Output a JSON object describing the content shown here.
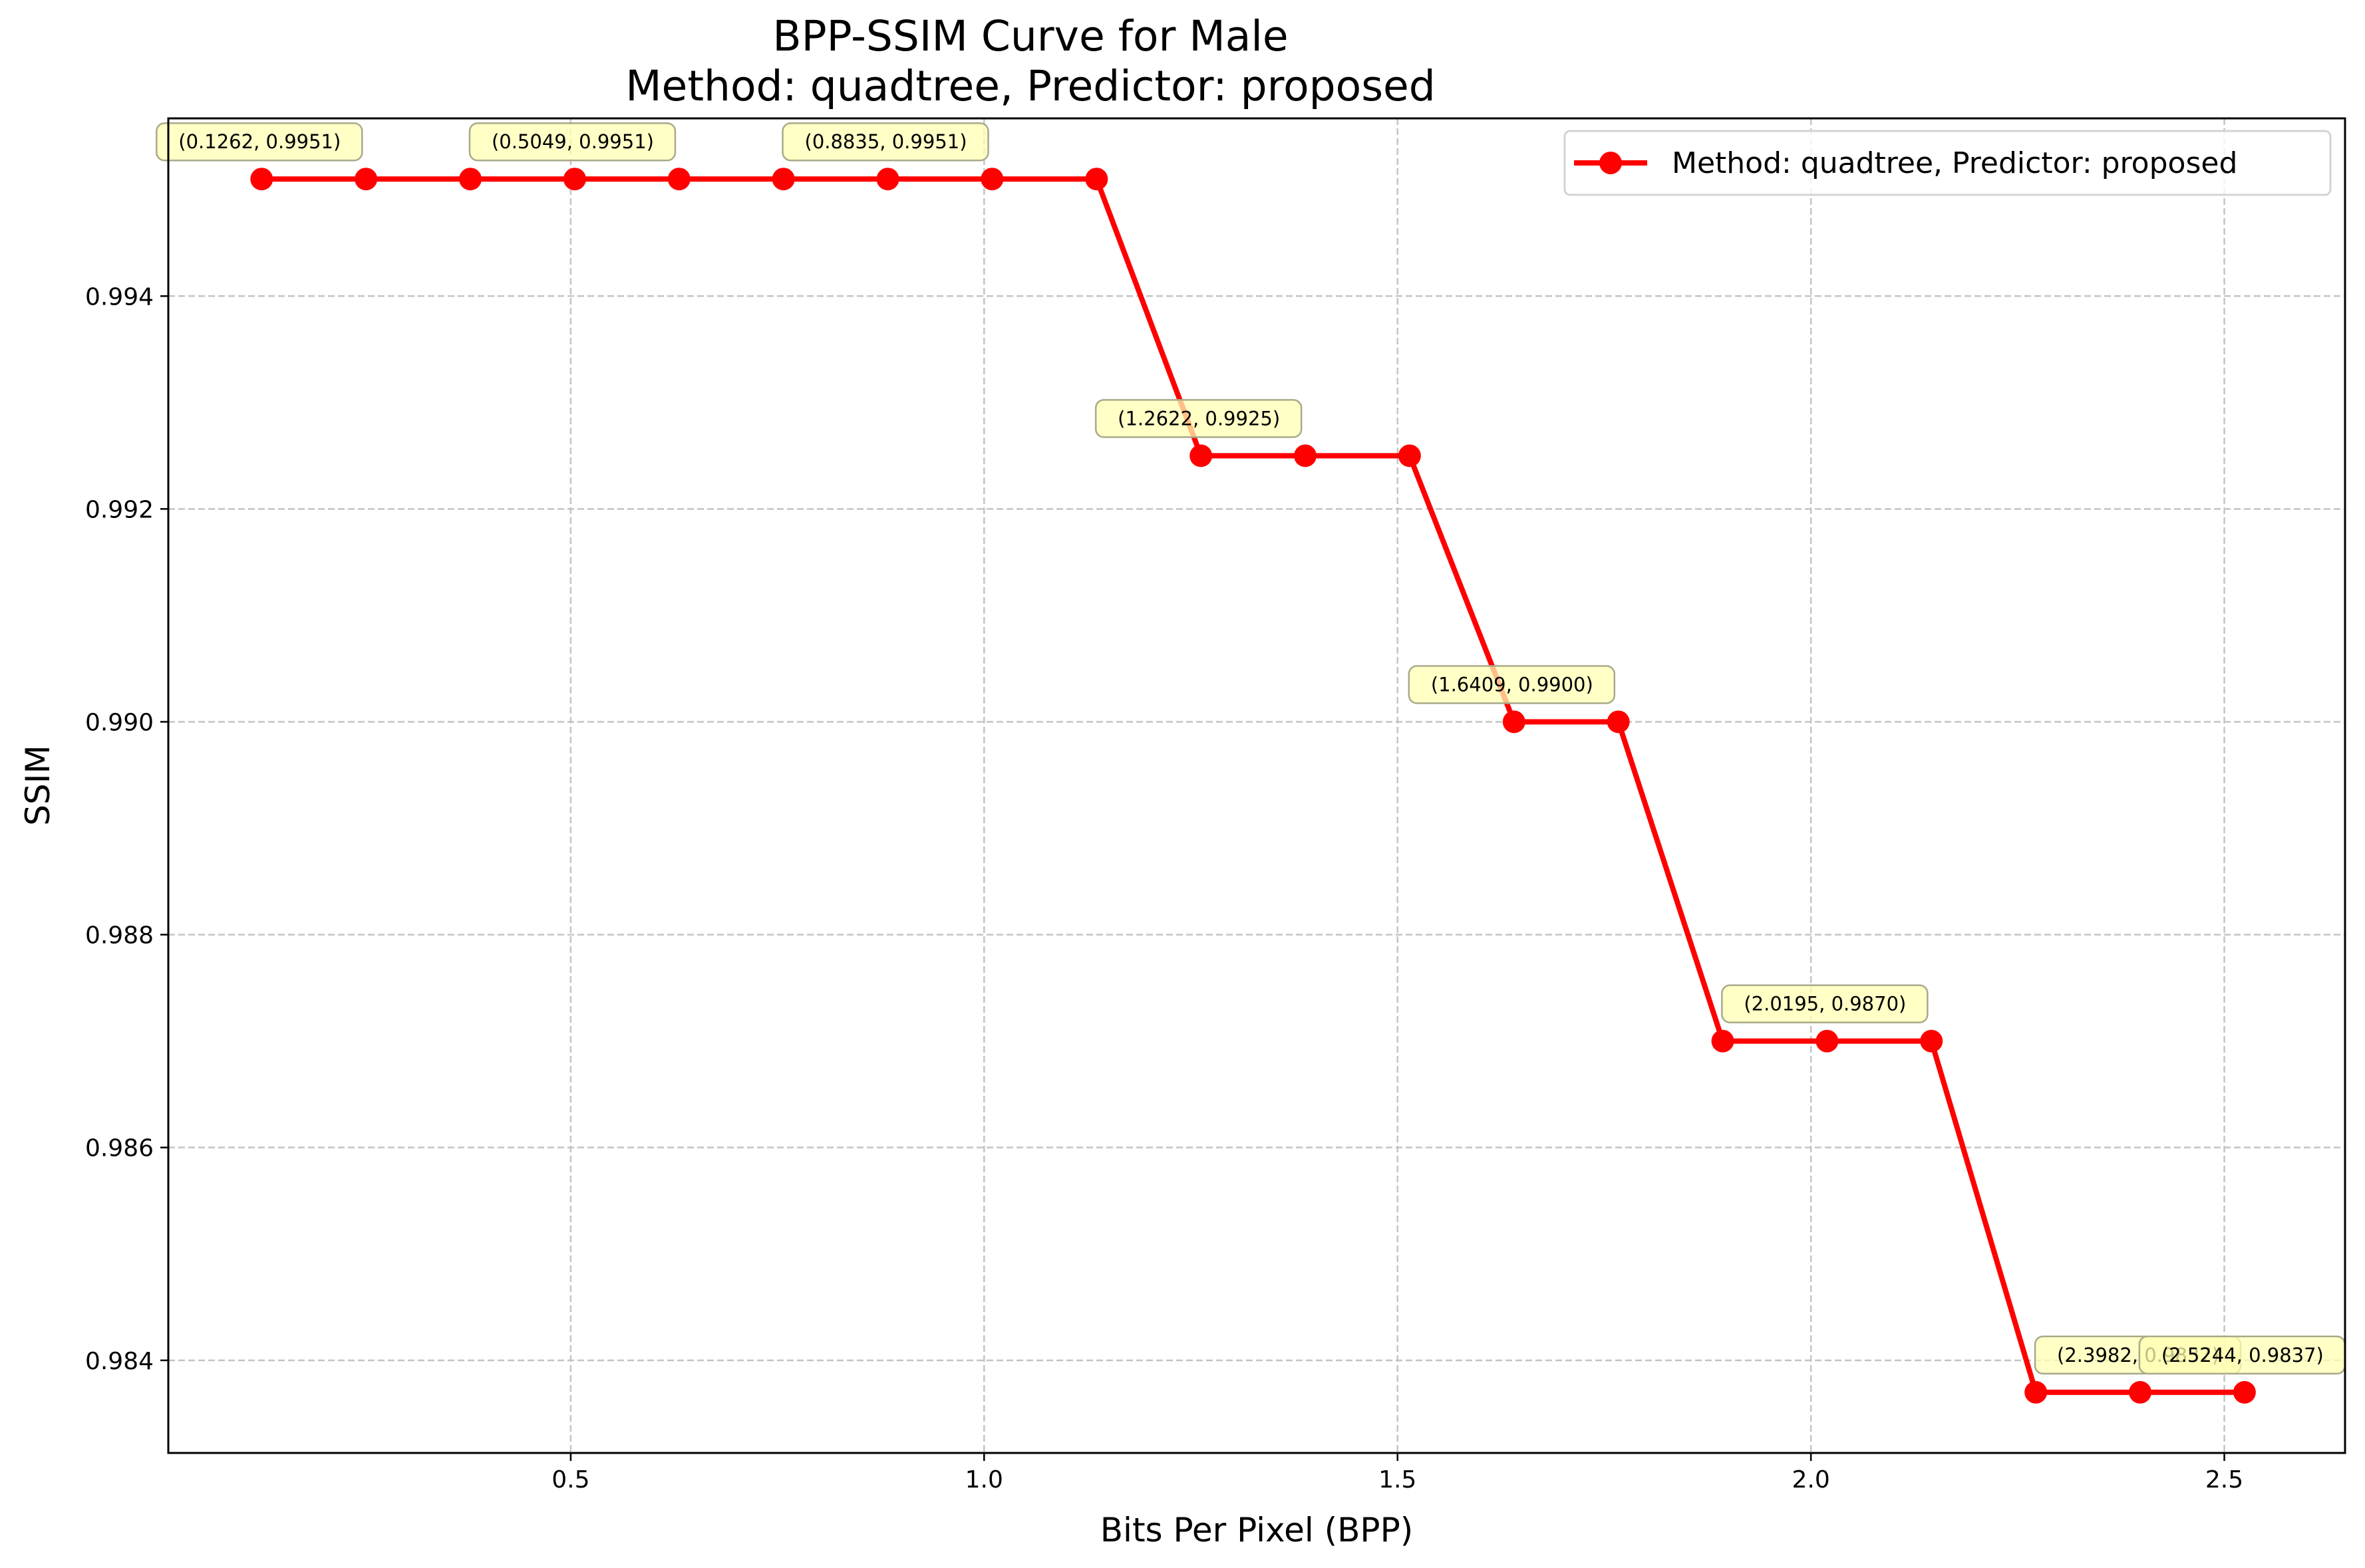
{
  "chart_data": {
    "type": "line",
    "title": [
      "BPP-SSIM Curve for Male",
      "Method: quadtree, Predictor: proposed"
    ],
    "xlabel": "Bits Per Pixel (BPP)",
    "ylabel": "SSIM",
    "xlim": [
      0.0133,
      2.646
    ],
    "ylim": [
      0.98313,
      0.99567
    ],
    "xticks": [
      0.5,
      1.0,
      1.5,
      2.0,
      2.5
    ],
    "xtick_labels": [
      "0.5",
      "1.0",
      "1.5",
      "2.0",
      "2.5"
    ],
    "yticks": [
      0.984,
      0.986,
      0.988,
      0.99,
      0.992,
      0.994
    ],
    "ytick_labels": [
      "0.984",
      "0.986",
      "0.988",
      "0.990",
      "0.992",
      "0.994"
    ],
    "grid": true,
    "legend_position": "top-right",
    "series": [
      {
        "name": "Method: quadtree, Predictor: proposed",
        "color": "#ff0000",
        "marker": "circle",
        "x": [
          0.1262,
          0.2524,
          0.3786,
          0.5049,
          0.6311,
          0.7573,
          0.8835,
          1.0097,
          1.136,
          1.2622,
          1.3884,
          1.5146,
          1.6409,
          1.7671,
          1.8933,
          2.0195,
          2.1457,
          2.272,
          2.3982,
          2.5244
        ],
        "y": [
          0.9951,
          0.9951,
          0.9951,
          0.9951,
          0.9951,
          0.9951,
          0.9951,
          0.9951,
          0.9951,
          0.9925,
          0.9925,
          0.9925,
          0.99,
          0.99,
          0.987,
          0.987,
          0.987,
          0.9837,
          0.9837,
          0.9837
        ]
      }
    ],
    "annotations": [
      {
        "x": 0.1262,
        "y": 0.9951,
        "text": "(0.1262, 0.9951)"
      },
      {
        "x": 0.5049,
        "y": 0.9951,
        "text": "(0.5049, 0.9951)"
      },
      {
        "x": 0.8835,
        "y": 0.9951,
        "text": "(0.8835, 0.9951)"
      },
      {
        "x": 1.2622,
        "y": 0.9925,
        "text": "(1.2622, 0.9925)"
      },
      {
        "x": 1.6409,
        "y": 0.99,
        "text": "(1.6409, 0.9900)"
      },
      {
        "x": 2.0195,
        "y": 0.987,
        "text": "(2.0195, 0.9870)"
      },
      {
        "x": 2.3982,
        "y": 0.9837,
        "text": "(2.3982, 0.9837)"
      },
      {
        "x": 2.5244,
        "y": 0.9837,
        "text": "(2.5244, 0.9837)"
      }
    ],
    "annotation_style": {
      "fill": "#ffffb3",
      "stroke": "#a9a98a"
    }
  }
}
